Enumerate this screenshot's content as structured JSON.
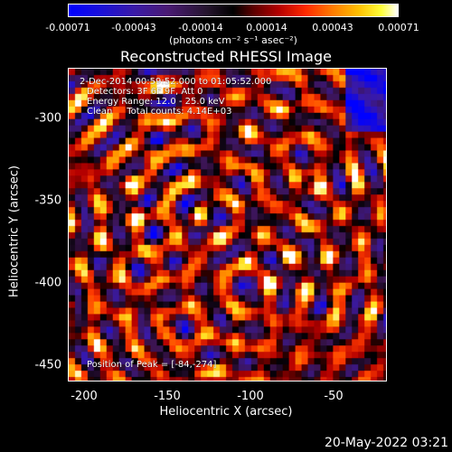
{
  "colorbar": {
    "ticks": [
      "-0.00071",
      "-0.00043",
      "-0.00014",
      "0.00014",
      "0.00043",
      "0.00071"
    ],
    "unit": "(photons cm⁻² s⁻¹ asec⁻²)"
  },
  "title": "Reconstructed RHESSI Image",
  "annotations": {
    "line1": "2-Dec-2014 00:59:52.000 to 01:05:52.000",
    "line2": "Detectors: 3F 6F 9F, Att 0",
    "line3": "Energy Range: 12.0 - 25.0 keV",
    "line4": "Clean     Total counts: 4.14E+03",
    "peak": "Position of Peak = [-84,-274]"
  },
  "axes": {
    "xlabel": "Heliocentric X (arcsec)",
    "ylabel": "Heliocentric Y (arcsec)",
    "xticks": [
      "-200",
      "-150",
      "-100",
      "-50"
    ],
    "yticks": [
      "-300",
      "-350",
      "-400",
      "-450"
    ]
  },
  "timestamp": "20-May-2022 03:21",
  "chart_data": {
    "type": "heatmap",
    "title": "Reconstructed RHESSI Image",
    "xlabel": "Heliocentric X (arcsec)",
    "ylabel": "Heliocentric Y (arcsec)",
    "xlim": [
      -208,
      -17
    ],
    "ylim": [
      -466,
      -280
    ],
    "colorbar_range": [
      -0.00071,
      0.00071
    ],
    "colormap": [
      "#0000ff",
      "#3a1aa6",
      "#25142e",
      "#000000",
      "#b50000",
      "#ff7a00",
      "#ffff3a",
      "#ffffff"
    ],
    "peak": [
      -84,
      -274
    ]
  }
}
